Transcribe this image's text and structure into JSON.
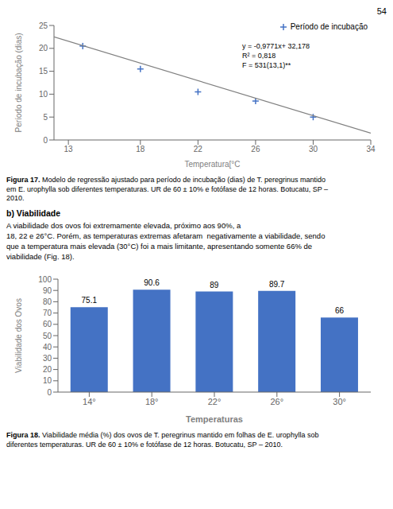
{
  "page_number": "54",
  "section_header": "b) Viabilidade",
  "body_text": "A viabilidade dos ovos foi extremamente elevada, próximo aos 90%, a\n18, 22 e 26°C. Porém, as temperaturas extremas afetaram  negativamente a viabilidade, sendo\nque a temperatura mais elevada (30°C) foi a mais limitante, apresentando somente 66% de\nviabilidade (Fig. 18).",
  "chart_data": [
    {
      "type": "scatter",
      "x_label": "Temperatura[°C",
      "y_label": "Período de incubação (dias)",
      "caption_label": "Figura 17.",
      "caption": "Modelo de regressão ajustado para período de incubação (dias) de T. peregrinus mantido\nem E. urophylla sob diferentes temperaturas. UR de 60 ± 10% e fotófase de 12 horas. Botucatu, SP –\n2010.",
      "annotations": [
        "y = -0,9771x+ 32,178",
        "R² = 0,818",
        "F = 531(13,1)**"
      ],
      "legend": "upper right",
      "grid": false,
      "xlim": [
        12,
        34
      ],
      "xticks": [
        13,
        18,
        22,
        26,
        30,
        34
      ],
      "ylim": [
        0,
        25
      ],
      "yticks": [
        0,
        5,
        10,
        15,
        20,
        25
      ],
      "series": [
        {
          "name": "Período de incubação",
          "type": "scatter",
          "marker": "plus",
          "color": "#4472C4",
          "x": [
            14,
            18,
            22,
            26,
            30
          ],
          "values": [
            20.5,
            15.5,
            10.5,
            8.5,
            5.0
          ]
        },
        {
          "type": "line",
          "color": "#808080",
          "x": [
            12,
            34
          ],
          "values": [
            22.5,
            1.5
          ]
        }
      ]
    },
    {
      "type": "bar",
      "x_label": "Temperaturas",
      "y_label": "Viabilidade dos Ovos",
      "caption_label": "Figura 18.",
      "caption": "Viabilidade média (%) dos ovos de T. peregrinus mantido em folhas de E. urophylla sob\ndiferentes temperaturas. UR de 60 ± 10% e fotófase de 12 horas. Botucatu, SP – 2010.",
      "categories": [
        "14°",
        "18°",
        "22°",
        "26°",
        "30°"
      ],
      "values": [
        75.1,
        90.6,
        89,
        89.7,
        66
      ],
      "color": "#4472C4",
      "ylim": [
        0,
        100
      ],
      "yticks": [
        0,
        10,
        20,
        30,
        40,
        50,
        60,
        70,
        80,
        90,
        100
      ],
      "data_labels": true,
      "grid": false
    }
  ]
}
